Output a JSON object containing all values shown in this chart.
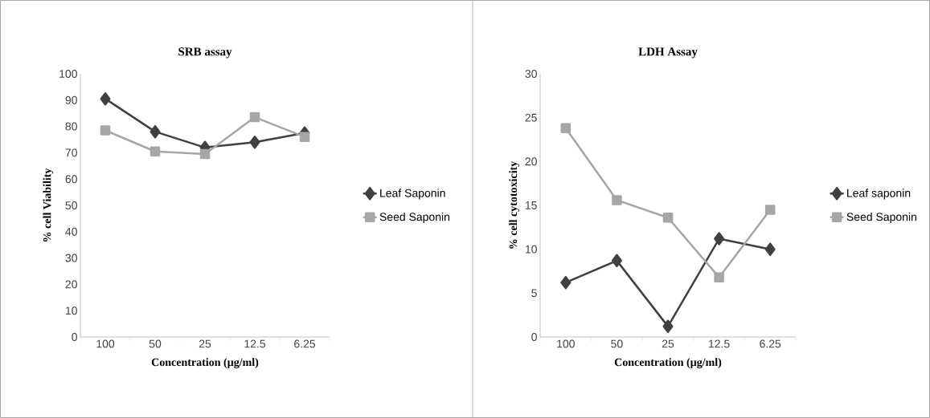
{
  "chart_data": [
    {
      "type": "line",
      "title": "SRB assay",
      "xlabel": "Concentration (µg/ml)",
      "ylabel": "% cell Viability",
      "categories": [
        "100",
        "50",
        "25",
        "12.5",
        "6.25"
      ],
      "ylim": [
        0,
        100
      ],
      "yticks": [
        0,
        10,
        20,
        30,
        40,
        50,
        60,
        70,
        80,
        90,
        100
      ],
      "legend": "right",
      "grid": false,
      "series": [
        {
          "name": "Leaf Saponin",
          "color": "#404040",
          "marker": "diamond",
          "values": [
            90.5,
            78,
            72,
            74,
            77.5
          ]
        },
        {
          "name": "Seed Saponin",
          "color": "#a6a6a6",
          "marker": "square",
          "values": [
            78.5,
            70.5,
            69.5,
            83.5,
            76
          ]
        }
      ]
    },
    {
      "type": "line",
      "title": "LDH Assay",
      "xlabel": "Concentration (µg/ml)",
      "ylabel": "% cell cytotoxicity",
      "categories": [
        "100",
        "50",
        "25",
        "12.5",
        "6.25"
      ],
      "ylim": [
        0,
        30
      ],
      "yticks": [
        0,
        5,
        10,
        15,
        20,
        25,
        30
      ],
      "legend": "right",
      "grid": false,
      "series": [
        {
          "name": "Leaf saponin",
          "color": "#404040",
          "marker": "diamond",
          "values": [
            6.2,
            8.7,
            1.2,
            11.2,
            10.0
          ]
        },
        {
          "name": "Seed Saponin",
          "color": "#a6a6a6",
          "marker": "square",
          "values": [
            23.8,
            15.6,
            13.6,
            6.8,
            14.5
          ]
        }
      ]
    }
  ]
}
